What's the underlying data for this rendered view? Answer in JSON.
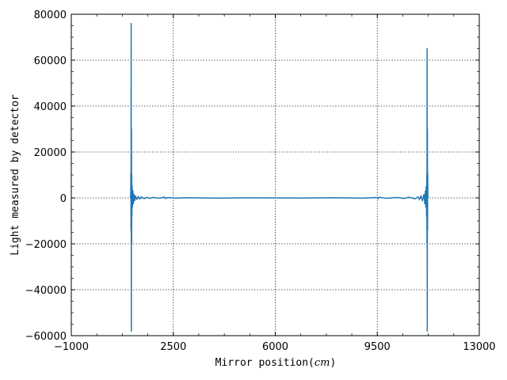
{
  "chart_data": {
    "type": "line",
    "title": "",
    "xlabel_prefix": "Mirror position(",
    "xlabel_unit": "cm",
    "xlabel_suffix": ")",
    "ylabel": "Light measured by detector",
    "xlim": [
      -1000,
      13000
    ],
    "ylim": [
      -60000,
      80000
    ],
    "xticks": [
      -1000,
      2500,
      6000,
      9500,
      13000
    ],
    "yticks": [
      -60000,
      -40000,
      -20000,
      0,
      20000,
      40000,
      60000,
      80000
    ],
    "grid": true,
    "series": [
      {
        "color": "#1f77b4",
        "points": [
          [
            1030,
            0
          ],
          [
            1040,
            2000
          ],
          [
            1045,
            11000
          ],
          [
            1050,
            -14000
          ],
          [
            1055,
            76000
          ],
          [
            1060,
            -58000
          ],
          [
            1065,
            30000
          ],
          [
            1070,
            -20000
          ],
          [
            1075,
            10000
          ],
          [
            1080,
            -8000
          ],
          [
            1090,
            5000
          ],
          [
            1100,
            -4000
          ],
          [
            1115,
            3000
          ],
          [
            1130,
            -2500
          ],
          [
            1150,
            1500
          ],
          [
            1175,
            -1200
          ],
          [
            1200,
            900
          ],
          [
            1250,
            -700
          ],
          [
            1300,
            600
          ],
          [
            1350,
            -500
          ],
          [
            1400,
            450
          ],
          [
            1500,
            -350
          ],
          [
            1600,
            300
          ],
          [
            1700,
            -250
          ],
          [
            1800,
            200
          ],
          [
            2000,
            -150
          ],
          [
            2200,
            350
          ],
          [
            2230,
            -300
          ],
          [
            2300,
            150
          ],
          [
            2600,
            -100
          ],
          [
            3000,
            100
          ],
          [
            4000,
            -80
          ],
          [
            5000,
            60
          ],
          [
            6000,
            0
          ],
          [
            7000,
            -60
          ],
          [
            8000,
            80
          ],
          [
            9000,
            -100
          ],
          [
            9500,
            150
          ],
          [
            9530,
            -350
          ],
          [
            9560,
            300
          ],
          [
            9800,
            -150
          ],
          [
            10200,
            200
          ],
          [
            10400,
            -250
          ],
          [
            10600,
            300
          ],
          [
            10800,
            -400
          ],
          [
            10900,
            500
          ],
          [
            10950,
            -700
          ],
          [
            11000,
            900
          ],
          [
            11050,
            -1200
          ],
          [
            11100,
            1500
          ],
          [
            11130,
            -2500
          ],
          [
            11150,
            3000
          ],
          [
            11165,
            -4000
          ],
          [
            11180,
            5000
          ],
          [
            11190,
            -8000
          ],
          [
            11200,
            10000
          ],
          [
            11205,
            -20000
          ],
          [
            11210,
            65000
          ],
          [
            11215,
            -58000
          ],
          [
            11220,
            30000
          ],
          [
            11225,
            -14000
          ],
          [
            11230,
            11000
          ],
          [
            11235,
            2000
          ],
          [
            11240,
            0
          ]
        ]
      }
    ]
  }
}
